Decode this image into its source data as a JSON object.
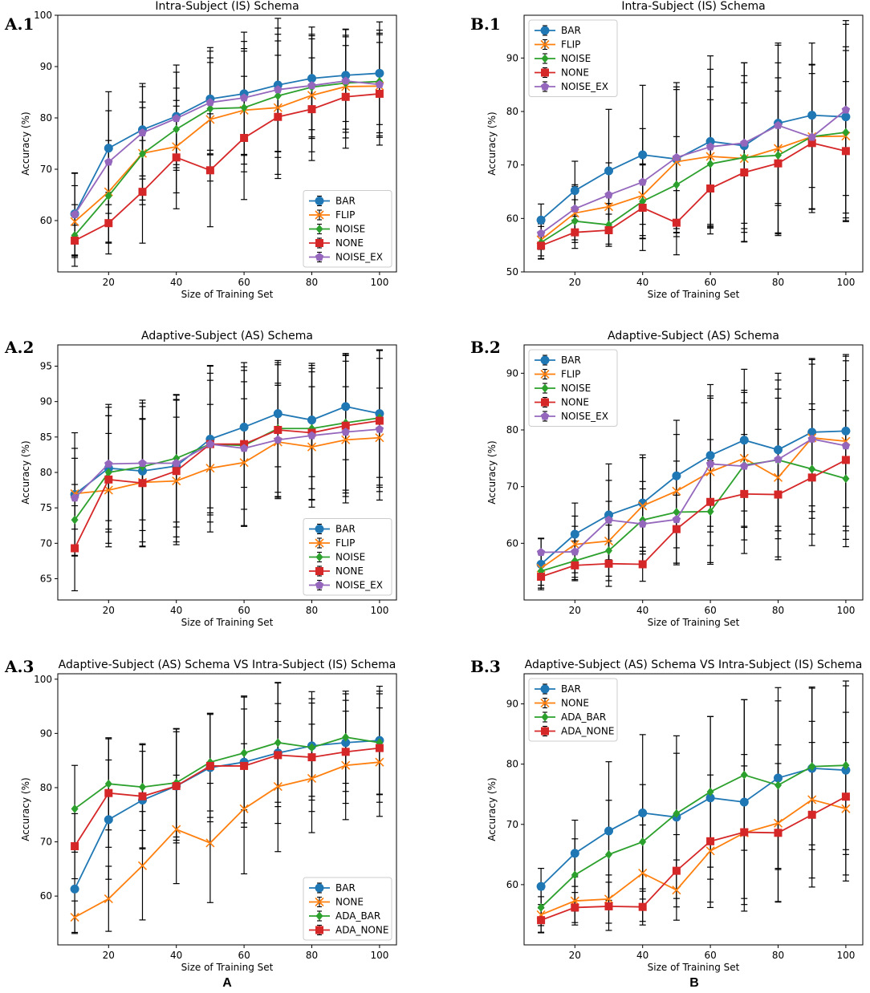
{
  "figure": {
    "column_labels": [
      "A",
      "B"
    ],
    "colors": {
      "BAR": "#1f77b4",
      "FLIP": "#ff7f0e",
      "NOISE": "#2ca02c",
      "NONE": "#d62728",
      "NOISE_EX": "#9467bd",
      "errorbar": "#000000"
    }
  },
  "chart_data": [
    {
      "id": "A.1",
      "panel_label": "A.1",
      "type": "line",
      "title": "Intra-Subject (IS) Schema",
      "xlabel": "Size of Training Set",
      "ylabel": "Accuracy (%)",
      "x": [
        10,
        20,
        30,
        40,
        50,
        60,
        70,
        80,
        90,
        100
      ],
      "xlim": [
        5,
        105
      ],
      "ylim": [
        50,
        100
      ],
      "xticks": [
        20,
        40,
        60,
        80,
        100
      ],
      "yticks": [
        60,
        70,
        80,
        90,
        100
      ],
      "legend_loc": "lower-right",
      "series": [
        {
          "name": "BAR",
          "marker": "circle",
          "color_key": "BAR",
          "values": [
            61.3,
            74.1,
            77.7,
            80.3,
            83.7,
            84.7,
            86.4,
            87.7,
            88.3,
            88.7
          ],
          "err": [
            8,
            11,
            9,
            10,
            10,
            12,
            13,
            10,
            9,
            10
          ]
        },
        {
          "name": "FLIP",
          "marker": "x",
          "color_key": "FLIP",
          "values": [
            59.8,
            65.6,
            73.1,
            74.4,
            79.7,
            81.5,
            82.0,
            84.4,
            86.1,
            86.2
          ],
          "err": [
            7,
            10,
            10,
            9,
            12,
            12,
            13,
            11,
            10,
            10
          ]
        },
        {
          "name": "NOISE",
          "marker": "diamond",
          "color_key": "NOISE",
          "values": [
            57.1,
            64.8,
            73.0,
            77.8,
            81.8,
            82.0,
            84.3,
            86.0,
            86.8,
            87.1
          ],
          "err": [
            6,
            9,
            9,
            8,
            9,
            11,
            12,
            10,
            9,
            10
          ]
        },
        {
          "name": "NONE",
          "marker": "square",
          "color_key": "NONE",
          "values": [
            56.1,
            59.5,
            65.6,
            72.3,
            69.8,
            76.1,
            80.2,
            81.7,
            84.1,
            84.7
          ],
          "err": [
            3,
            6,
            10,
            10,
            11,
            12,
            12,
            10,
            10,
            10
          ]
        },
        {
          "name": "NOISE_EX",
          "marker": "pentagon",
          "color_key": "NOISE_EX",
          "values": [
            61.2,
            71.4,
            77.1,
            79.9,
            83.0,
            83.9,
            85.5,
            86.3,
            87.2,
            86.5
          ],
          "err": [
            8,
            10,
            9,
            9,
            10,
            11,
            12,
            10,
            10,
            10
          ]
        }
      ]
    },
    {
      "id": "B.1",
      "panel_label": "B.1",
      "type": "line",
      "title": "Intra-Subject (IS) Schema",
      "xlabel": "Size of Training Set",
      "ylabel": "Accuracy (%)",
      "x": [
        10,
        20,
        30,
        40,
        50,
        60,
        70,
        80,
        90,
        100
      ],
      "xlim": [
        5,
        105
      ],
      "ylim": [
        50,
        98
      ],
      "xticks": [
        20,
        40,
        60,
        80,
        100
      ],
      "yticks": [
        50,
        60,
        70,
        80,
        90
      ],
      "legend_loc": "upper-left",
      "series": [
        {
          "name": "BAR",
          "marker": "circle",
          "color_key": "BAR",
          "values": [
            59.7,
            65.2,
            68.9,
            71.9,
            71.1,
            74.4,
            73.6,
            77.8,
            79.3,
            79.0
          ],
          "err": [
            3,
            5.5,
            11.5,
            13,
            13,
            16,
            15.5,
            15,
            13.5,
            18
          ]
        },
        {
          "name": "FLIP",
          "marker": "x",
          "color_key": "FLIP",
          "values": [
            56.0,
            61.0,
            62.2,
            64.3,
            70.6,
            71.6,
            71.2,
            73.1,
            75.3,
            75.4
          ],
          "err": [
            3,
            5,
            7,
            8,
            14,
            13,
            15.5,
            16,
            13.5,
            16
          ]
        },
        {
          "name": "NOISE",
          "marker": "diamond",
          "color_key": "NOISE",
          "values": [
            55.5,
            59.5,
            58.8,
            63.2,
            66.3,
            70.2,
            71.4,
            71.8,
            75.3,
            76.1
          ],
          "err": [
            3,
            4,
            4,
            7,
            9,
            12,
            14,
            14.5,
            13.5,
            16
          ]
        },
        {
          "name": "NONE",
          "marker": "square",
          "color_key": "NONE",
          "values": [
            54.9,
            57.4,
            57.8,
            62.0,
            59.2,
            65.6,
            68.6,
            70.3,
            74.1,
            72.6
          ],
          "err": [
            2.5,
            3,
            3,
            8,
            6,
            8.5,
            13,
            13.5,
            13,
            13
          ]
        },
        {
          "name": "NOISE_EX",
          "marker": "pentagon",
          "color_key": "NOISE_EX",
          "values": [
            57.2,
            61.8,
            64.4,
            66.8,
            71.4,
            73.4,
            74.1,
            77.4,
            75.2,
            80.3
          ],
          "err": [
            3,
            4.5,
            6,
            10,
            14,
            14.5,
            15,
            15,
            13.5,
            16
          ]
        }
      ]
    },
    {
      "id": "A.2",
      "panel_label": "A.2",
      "type": "line",
      "title": "Adaptive-Subject (AS) Schema",
      "xlabel": "Size of Training Set",
      "ylabel": "Accuracy (%)",
      "x": [
        10,
        20,
        30,
        40,
        50,
        60,
        70,
        80,
        90,
        100
      ],
      "xlim": [
        5,
        105
      ],
      "ylim": [
        62,
        98
      ],
      "xticks": [
        20,
        40,
        60,
        80,
        100
      ],
      "yticks": [
        65,
        70,
        75,
        80,
        85,
        90,
        95
      ],
      "legend_loc": "lower-right",
      "series": [
        {
          "name": "BAR",
          "marker": "circle",
          "color_key": "BAR",
          "values": [
            76.9,
            80.6,
            80.2,
            80.9,
            84.7,
            86.4,
            88.3,
            87.4,
            89.3,
            88.3
          ],
          "err": [
            8.7,
            9,
            10,
            10,
            10.4,
            8.5,
            7.5,
            8,
            7.5,
            9
          ]
        },
        {
          "name": "FLIP",
          "marker": "x",
          "color_key": "FLIP",
          "values": [
            77.0,
            77.5,
            78.6,
            78.8,
            80.6,
            81.4,
            84.3,
            83.6,
            84.6,
            84.9
          ],
          "err": [
            5,
            8,
            9,
            9,
            9,
            9,
            8,
            8.5,
            7.5,
            7
          ]
        },
        {
          "name": "NOISE",
          "marker": "diamond",
          "color_key": "NOISE",
          "values": [
            73.3,
            80.0,
            80.8,
            82.0,
            84.0,
            83.8,
            86.2,
            86.2,
            87.0,
            87.7
          ],
          "err": [
            5,
            8,
            9,
            9,
            10,
            9,
            9,
            8.5,
            9.5,
            9.5
          ]
        },
        {
          "name": "NONE",
          "marker": "square",
          "color_key": "NONE",
          "values": [
            69.3,
            79.0,
            78.5,
            80.2,
            84.0,
            84.0,
            86.0,
            85.6,
            86.6,
            87.3
          ],
          "err": [
            6,
            9,
            9,
            10,
            11,
            11.5,
            9.5,
            9.5,
            10,
            10
          ]
        },
        {
          "name": "NOISE_EX",
          "marker": "pentagon",
          "color_key": "NOISE_EX",
          "values": [
            76.4,
            81.2,
            81.3,
            81.3,
            84.0,
            83.4,
            84.6,
            85.2,
            85.7,
            86.1
          ],
          "err": [
            7,
            8,
            8,
            9,
            9,
            11,
            8,
            9,
            10,
            10
          ]
        }
      ]
    },
    {
      "id": "B.2",
      "panel_label": "B.2",
      "type": "line",
      "title": "Adaptive-Subject (AS) Schema",
      "xlabel": "Size of Training Set",
      "ylabel": "Accuracy (%)",
      "x": [
        10,
        20,
        30,
        40,
        50,
        60,
        70,
        80,
        90,
        100
      ],
      "xlim": [
        5,
        105
      ],
      "ylim": [
        50,
        95
      ],
      "xticks": [
        20,
        40,
        60,
        80,
        100
      ],
      "yticks": [
        60,
        70,
        80,
        90
      ],
      "legend_loc": "upper-left",
      "series": [
        {
          "name": "BAR",
          "marker": "circle",
          "color_key": "BAR",
          "values": [
            56.3,
            61.6,
            65.0,
            67.1,
            71.9,
            75.5,
            78.2,
            76.5,
            79.6,
            79.8
          ],
          "err": [
            4.5,
            5.5,
            9,
            8.5,
            9.8,
            12.5,
            12.5,
            13.5,
            13,
            13.5
          ]
        },
        {
          "name": "FLIP",
          "marker": "x",
          "color_key": "FLIP",
          "values": [
            55.6,
            59.8,
            60.4,
            66.6,
            69.2,
            72.6,
            75.0,
            71.6,
            78.6,
            78.0
          ],
          "err": [
            3,
            5,
            7,
            8.5,
            10,
            13,
            12,
            14,
            13,
            15
          ]
        },
        {
          "name": "NOISE",
          "marker": "diamond",
          "color_key": "NOISE",
          "values": [
            55.1,
            56.9,
            58.7,
            64.1,
            65.5,
            65.6,
            73.8,
            74.7,
            73.1,
            71.4
          ],
          "err": [
            3,
            3.5,
            4.5,
            5.5,
            9,
            9,
            11,
            12.5,
            11.5,
            12
          ]
        },
        {
          "name": "NONE",
          "marker": "square",
          "color_key": "NONE",
          "values": [
            54.1,
            56.1,
            56.4,
            56.3,
            62.5,
            67.3,
            68.7,
            68.6,
            71.6,
            74.7
          ],
          "err": [
            2,
            2.5,
            4,
            3,
            6,
            11,
            10.5,
            11.5,
            12,
            14
          ]
        },
        {
          "name": "NOISE_EX",
          "marker": "pentagon",
          "color_key": "NOISE_EX",
          "values": [
            58.4,
            58.5,
            64.1,
            63.4,
            64.2,
            74.0,
            73.6,
            74.8,
            78.4,
            77.2
          ],
          "err": [
            2.5,
            4.5,
            7,
            7.5,
            8,
            12,
            13,
            14,
            14,
            15
          ]
        }
      ]
    },
    {
      "id": "A.3",
      "panel_label": "A.3",
      "type": "line",
      "title": "Adaptive-Subject (AS) Schema VS Intra-Subject (IS) Schema",
      "xlabel": "Size of Training Set",
      "ylabel": "Accuracy (%)",
      "x": [
        10,
        20,
        30,
        40,
        50,
        60,
        70,
        80,
        90,
        100
      ],
      "xlim": [
        5,
        105
      ],
      "ylim": [
        51,
        101
      ],
      "xticks": [
        20,
        40,
        60,
        80,
        100
      ],
      "yticks": [
        60,
        70,
        80,
        90,
        100
      ],
      "legend_loc": "lower-right",
      "series": [
        {
          "name": "BAR",
          "marker": "circle",
          "color_key": "BAR",
          "values": [
            61.3,
            74.1,
            77.7,
            80.3,
            83.7,
            84.7,
            86.4,
            87.7,
            88.3,
            88.7
          ],
          "err": [
            8,
            11,
            9,
            10,
            10,
            12,
            13,
            10,
            9,
            10
          ]
        },
        {
          "name": "NONE",
          "marker": "x",
          "color_key": "FLIP",
          "values": [
            56.1,
            59.5,
            65.6,
            72.3,
            69.8,
            76.1,
            80.2,
            81.7,
            84.1,
            84.7
          ],
          "err": [
            3,
            6,
            10,
            10,
            11,
            12,
            12,
            10,
            10,
            10
          ]
        },
        {
          "name": "ADA_BAR",
          "marker": "diamond",
          "color_key": "NOISE",
          "values": [
            76.1,
            80.7,
            80.1,
            80.9,
            84.7,
            86.4,
            88.3,
            87.4,
            89.3,
            88.3
          ],
          "err": [
            8,
            8.5,
            8,
            10,
            9,
            10.5,
            11,
            9,
            8.5,
            9.5
          ]
        },
        {
          "name": "ADA_NONE",
          "marker": "square",
          "color_key": "NONE",
          "values": [
            69.2,
            79.0,
            78.4,
            80.3,
            84.0,
            84.0,
            86.0,
            85.6,
            86.6,
            87.3
          ],
          "err": [
            6,
            10,
            9.5,
            10.5,
            9.5,
            10.5,
            9.5,
            10,
            9.5,
            10
          ]
        }
      ]
    },
    {
      "id": "B.3",
      "panel_label": "B.3",
      "type": "line",
      "title": "Adaptive-Subject (AS) Schema VS Intra-Subject (IS) Schema",
      "xlabel": "Size of Training Set",
      "ylabel": "Accuracy (%)",
      "x": [
        10,
        20,
        30,
        40,
        50,
        60,
        70,
        80,
        90,
        100
      ],
      "xlim": [
        5,
        105
      ],
      "ylim": [
        50,
        95
      ],
      "xticks": [
        20,
        40,
        60,
        80,
        100
      ],
      "yticks": [
        60,
        70,
        80,
        90
      ],
      "legend_loc": "upper-left",
      "series": [
        {
          "name": "BAR",
          "marker": "circle",
          "color_key": "BAR",
          "values": [
            59.7,
            65.2,
            68.9,
            71.9,
            71.2,
            74.4,
            73.7,
            77.7,
            79.3,
            79.0
          ],
          "err": [
            3,
            5.5,
            11.5,
            13,
            13.5,
            13.5,
            17,
            15,
            13.5,
            14
          ]
        },
        {
          "name": "NONE",
          "marker": "x",
          "color_key": "FLIP",
          "values": [
            55.0,
            57.3,
            57.6,
            61.9,
            59.1,
            65.6,
            68.6,
            70.2,
            74.1,
            72.6
          ],
          "err": [
            3,
            4,
            4,
            8,
            5,
            8.5,
            13,
            13,
            13,
            11
          ]
        },
        {
          "name": "ADA_BAR",
          "marker": "diamond",
          "color_key": "NOISE",
          "values": [
            56.2,
            61.6,
            65.0,
            67.1,
            71.8,
            75.4,
            78.2,
            76.5,
            79.6,
            79.8
          ],
          "err": [
            3,
            6,
            9,
            9.5,
            10,
            12.5,
            12.5,
            14,
            13,
            14
          ]
        },
        {
          "name": "ADA_NONE",
          "marker": "square",
          "color_key": "NONE",
          "values": [
            54.1,
            56.2,
            56.4,
            56.3,
            62.3,
            67.2,
            68.7,
            68.6,
            71.6,
            74.6
          ],
          "err": [
            2,
            2.5,
            4,
            3,
            6,
            11,
            11,
            11.5,
            12,
            14
          ]
        }
      ]
    }
  ]
}
